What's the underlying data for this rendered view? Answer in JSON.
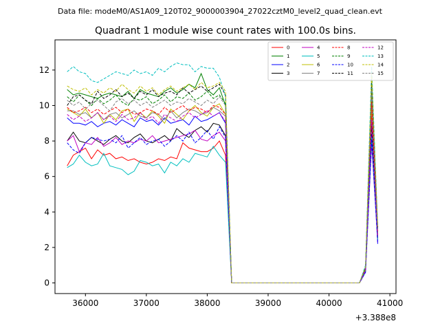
{
  "suptitle": "Data file: modeM0/AS1A09_120T02_9000003904_27022cztM0_level2_quad_clean.evt",
  "chart_data": {
    "type": "line",
    "title": "Quadrant 1 module wise count rates with 100.0s bins.",
    "xlabel": "",
    "ylabel": "",
    "x_offset_label": "+3.388e8",
    "xlim": [
      35500,
      41100
    ],
    "ylim": [
      -0.6,
      13.7
    ],
    "xticks": [
      36000,
      37000,
      38000,
      39000,
      40000,
      41000
    ],
    "yticks": [
      0,
      2,
      4,
      6,
      8,
      10,
      12
    ],
    "grid": false,
    "legend_position": "top-right",
    "legend_columns": 4,
    "x": [
      35700,
      35800,
      35900,
      36000,
      36100,
      36200,
      36300,
      36400,
      36500,
      36600,
      36700,
      36800,
      36900,
      37000,
      37100,
      37200,
      37300,
      37400,
      37500,
      37600,
      37700,
      37800,
      37900,
      38000,
      38100,
      38200,
      38300,
      38400,
      38500,
      40500,
      40600,
      40700,
      40800
    ],
    "series": [
      {
        "name": "0",
        "color": "#ff0000",
        "dash": "solid",
        "values": [
          6.6,
          7.2,
          7.4,
          7.6,
          7.0,
          7.5,
          7.2,
          7.3,
          7.0,
          7.1,
          6.9,
          7.0,
          6.8,
          6.7,
          6.8,
          7.0,
          6.9,
          7.1,
          7.0,
          7.9,
          7.6,
          7.5,
          7.4,
          7.4,
          7.6,
          8.0,
          7.2,
          0.0,
          0.0,
          0.0,
          0.7,
          9.5,
          2.6
        ]
      },
      {
        "name": "1",
        "color": "#008000",
        "dash": "solid",
        "values": [
          10.9,
          10.6,
          10.7,
          10.6,
          10.5,
          10.4,
          10.6,
          10.7,
          10.6,
          10.5,
          10.8,
          10.4,
          10.9,
          10.7,
          10.6,
          10.5,
          10.8,
          11.0,
          10.7,
          10.9,
          11.2,
          11.0,
          11.8,
          10.9,
          10.6,
          11.0,
          10.0,
          0.0,
          0.0,
          0.0,
          0.9,
          11.0,
          3.1
        ]
      },
      {
        "name": "2",
        "color": "#0000ff",
        "dash": "solid",
        "values": [
          9.3,
          9.0,
          9.0,
          8.9,
          9.1,
          8.8,
          9.0,
          9.1,
          8.9,
          9.2,
          9.0,
          8.8,
          9.3,
          9.1,
          9.2,
          8.9,
          9.3,
          9.0,
          9.1,
          9.2,
          8.9,
          9.4,
          9.1,
          9.2,
          9.4,
          9.6,
          9.0,
          0.0,
          0.0,
          0.0,
          0.7,
          8.4,
          2.2
        ]
      },
      {
        "name": "3",
        "color": "#000000",
        "dash": "solid",
        "values": [
          8.0,
          8.5,
          8.0,
          7.9,
          8.2,
          8.0,
          7.8,
          8.1,
          8.3,
          8.0,
          7.9,
          8.2,
          8.4,
          8.0,
          7.9,
          8.1,
          8.3,
          8.0,
          8.7,
          8.4,
          8.2,
          8.6,
          8.8,
          8.5,
          9.0,
          8.9,
          8.3,
          0.0,
          0.0,
          0.0,
          0.8,
          9.0,
          2.5
        ]
      },
      {
        "name": "4",
        "color": "#c000c0",
        "dash": "solid",
        "values": [
          8.0,
          8.3,
          7.4,
          7.9,
          7.8,
          8.2,
          7.7,
          7.9,
          8.2,
          7.8,
          8.0,
          7.9,
          8.1,
          8.0,
          8.3,
          7.9,
          8.0,
          8.1,
          8.2,
          8.3,
          8.4,
          8.6,
          8.1,
          8.0,
          8.3,
          8.5,
          8.0,
          0.0,
          0.0,
          0.0,
          0.6,
          7.8,
          2.3
        ]
      },
      {
        "name": "5",
        "color": "#00bfbf",
        "dash": "solid",
        "values": [
          6.5,
          6.7,
          7.2,
          6.8,
          6.6,
          6.7,
          7.3,
          6.6,
          6.5,
          6.4,
          6.1,
          6.3,
          6.9,
          6.8,
          6.6,
          6.7,
          6.2,
          6.8,
          6.6,
          7.0,
          6.8,
          7.3,
          7.2,
          7.1,
          7.7,
          7.2,
          6.8,
          0.0,
          0.0,
          0.0,
          0.6,
          8.2,
          2.4
        ]
      },
      {
        "name": "6",
        "color": "#bfbf00",
        "dash": "solid",
        "values": [
          9.8,
          9.6,
          9.4,
          9.8,
          9.3,
          9.6,
          9.0,
          9.5,
          9.2,
          9.7,
          9.8,
          9.1,
          9.6,
          9.3,
          9.7,
          9.4,
          9.0,
          9.8,
          9.5,
          9.2,
          9.7,
          10.0,
          9.6,
          9.4,
          9.9,
          10.1,
          9.5,
          0.0,
          0.0,
          0.0,
          0.8,
          10.0,
          2.8
        ]
      },
      {
        "name": "7",
        "color": "#808080",
        "dash": "solid",
        "values": [
          9.7,
          9.7,
          9.5,
          9.6,
          9.3,
          9.6,
          9.2,
          9.5,
          9.6,
          9.3,
          9.5,
          9.7,
          9.4,
          9.3,
          9.6,
          9.5,
          9.2,
          9.7,
          9.3,
          9.6,
          9.8,
          9.7,
          9.5,
          9.6,
          9.9,
          9.7,
          9.4,
          0.0,
          0.0,
          0.0,
          0.7,
          10.5,
          2.6
        ]
      },
      {
        "name": "8",
        "color": "#ff0000",
        "dash": "dashed",
        "values": [
          9.9,
          9.6,
          9.7,
          9.9,
          9.6,
          9.8,
          9.5,
          9.7,
          9.9,
          9.6,
          9.8,
          9.5,
          9.6,
          9.8,
          9.7,
          9.5,
          9.9,
          9.6,
          9.8,
          10.0,
          9.7,
          9.9,
          9.8,
          9.6,
          10.0,
          9.9,
          9.5,
          0.0,
          0.0,
          0.0,
          0.8,
          10.2,
          2.9
        ]
      },
      {
        "name": "9",
        "color": "#008000",
        "dash": "dashed",
        "values": [
          10.5,
          10.2,
          10.6,
          10.3,
          10.0,
          10.4,
          10.1,
          10.3,
          10.6,
          10.2,
          10.0,
          10.4,
          10.3,
          10.5,
          10.1,
          10.3,
          10.6,
          10.2,
          10.5,
          10.4,
          10.7,
          10.3,
          10.5,
          10.8,
          10.4,
          10.6,
          10.1,
          0.0,
          0.0,
          0.0,
          0.8,
          11.3,
          3.0
        ]
      },
      {
        "name": "10",
        "color": "#0000ff",
        "dash": "dashed",
        "values": [
          7.9,
          7.5,
          7.3,
          7.9,
          8.2,
          8.1,
          8.0,
          8.1,
          7.9,
          8.3,
          7.6,
          7.9,
          8.2,
          7.8,
          8.0,
          8.1,
          7.7,
          8.0,
          8.3,
          8.0,
          8.5,
          7.9,
          8.2,
          8.6,
          8.1,
          8.8,
          8.2,
          0.0,
          0.0,
          0.0,
          0.6,
          8.1,
          2.3
        ]
      },
      {
        "name": "11",
        "color": "#000000",
        "dash": "dashed",
        "values": [
          10.0,
          10.5,
          10.6,
          10.3,
          10.1,
          10.8,
          10.4,
          10.6,
          10.9,
          10.5,
          10.7,
          10.4,
          10.8,
          10.6,
          10.9,
          10.5,
          10.7,
          10.8,
          10.6,
          11.0,
          10.7,
          10.9,
          11.1,
          10.8,
          11.0,
          11.2,
          10.6,
          0.0,
          0.0,
          0.0,
          0.9,
          11.5,
          3.1
        ]
      },
      {
        "name": "12",
        "color": "#c000c0",
        "dash": "dashed",
        "values": [
          9.5,
          9.2,
          9.4,
          9.1,
          9.3,
          9.6,
          9.2,
          9.4,
          9.1,
          9.5,
          9.2,
          9.3,
          9.6,
          9.2,
          9.4,
          9.0,
          9.5,
          9.3,
          9.1,
          9.4,
          9.6,
          9.3,
          9.5,
          9.7,
          9.4,
          9.6,
          9.1,
          0.0,
          0.0,
          0.0,
          0.7,
          9.2,
          2.6
        ]
      },
      {
        "name": "13",
        "color": "#00bfbf",
        "dash": "dashed",
        "values": [
          11.9,
          12.2,
          11.9,
          11.8,
          11.4,
          11.3,
          11.5,
          11.7,
          11.9,
          11.8,
          11.7,
          12.0,
          11.8,
          11.9,
          11.7,
          12.1,
          11.9,
          12.2,
          12.4,
          12.3,
          12.3,
          11.9,
          12.2,
          12.1,
          12.1,
          11.6,
          10.5,
          0.0,
          0.0,
          0.0,
          1.0,
          12.2,
          3.2
        ]
      },
      {
        "name": "14",
        "color": "#bfbf00",
        "dash": "dashed",
        "values": [
          11.1,
          10.9,
          10.8,
          11.0,
          10.6,
          10.9,
          10.7,
          11.0,
          10.8,
          11.2,
          10.9,
          10.7,
          11.1,
          10.8,
          11.0,
          10.6,
          10.9,
          11.1,
          10.8,
          11.0,
          11.2,
          10.9,
          11.3,
          11.0,
          11.1,
          11.3,
          10.8,
          0.0,
          0.0,
          0.0,
          0.9,
          11.8,
          3.2
        ]
      },
      {
        "name": "15",
        "color": "#808080",
        "dash": "dashed",
        "values": [
          10.3,
          10.0,
          10.2,
          9.8,
          10.1,
          10.3,
          10.0,
          9.7,
          10.2,
          10.4,
          10.1,
          10.3,
          10.0,
          10.2,
          9.9,
          10.1,
          10.3,
          10.0,
          10.2,
          10.1,
          10.4,
          10.2,
          10.0,
          10.3,
          10.1,
          10.5,
          10.0,
          0.0,
          0.0,
          0.0,
          0.9,
          11.0,
          3.0
        ]
      }
    ]
  }
}
